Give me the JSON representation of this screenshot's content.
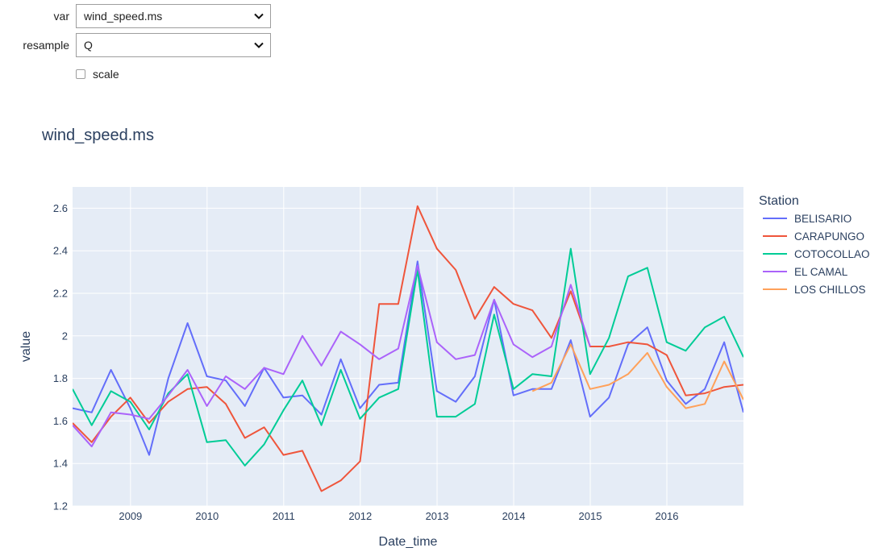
{
  "controls": {
    "var": {
      "label": "var",
      "value": "wind_speed.ms"
    },
    "resample": {
      "label": "resample",
      "value": "Q"
    },
    "scale": {
      "label": "scale",
      "checked": false
    }
  },
  "chart_data": {
    "type": "line",
    "title": "wind_speed.ms",
    "xlabel": "Date_time",
    "ylabel": "value",
    "xlim": [
      "2008-03-31",
      "2016-12-31"
    ],
    "ylim": [
      1.2,
      2.7
    ],
    "x_ticks": [
      "2009",
      "2010",
      "2011",
      "2012",
      "2013",
      "2014",
      "2015",
      "2016"
    ],
    "y_ticks": [
      "1.2",
      "1.4",
      "1.6",
      "1.8",
      "2",
      "2.2",
      "2.4",
      "2.6"
    ],
    "y_tick_values": [
      1.2,
      1.4,
      1.6,
      1.8,
      2.0,
      2.2,
      2.4,
      2.6
    ],
    "grid": true,
    "legend": {
      "title": "Station",
      "position": "right"
    },
    "x": [
      "2008-03-31",
      "2008-06-30",
      "2008-09-30",
      "2008-12-31",
      "2009-03-31",
      "2009-06-30",
      "2009-09-30",
      "2009-12-31",
      "2010-03-31",
      "2010-06-30",
      "2010-09-30",
      "2010-12-31",
      "2011-03-31",
      "2011-06-30",
      "2011-09-30",
      "2011-12-31",
      "2012-03-31",
      "2012-06-30",
      "2012-09-30",
      "2012-12-31",
      "2013-03-31",
      "2013-06-30",
      "2013-09-30",
      "2013-12-31",
      "2014-03-31",
      "2014-06-30",
      "2014-09-30",
      "2014-12-31",
      "2015-03-31",
      "2015-06-30",
      "2015-09-30",
      "2015-12-31",
      "2016-03-31",
      "2016-06-30",
      "2016-09-30",
      "2016-12-31"
    ],
    "series": [
      {
        "name": "BELISARIO",
        "color": "#636efa",
        "values": [
          1.66,
          1.64,
          1.84,
          1.66,
          1.44,
          1.8,
          2.06,
          1.81,
          1.79,
          1.67,
          1.85,
          1.71,
          1.72,
          1.63,
          1.89,
          1.66,
          1.77,
          1.78,
          2.35,
          1.74,
          1.69,
          1.81,
          2.17,
          1.72,
          1.75,
          1.75,
          1.98,
          1.62,
          1.71,
          1.96,
          2.04,
          1.79,
          1.68,
          1.75,
          1.97,
          1.64
        ]
      },
      {
        "name": "CARAPUNGO",
        "color": "#ef553b",
        "values": [
          1.59,
          1.5,
          1.62,
          1.71,
          1.59,
          1.69,
          1.75,
          1.76,
          1.68,
          1.52,
          1.57,
          1.44,
          1.46,
          1.27,
          1.32,
          1.41,
          2.15,
          2.15,
          2.61,
          2.41,
          2.31,
          2.08,
          2.23,
          2.15,
          2.12,
          1.99,
          2.21,
          1.95,
          1.95,
          1.97,
          1.96,
          1.91,
          1.72,
          1.73,
          1.76,
          1.77
        ]
      },
      {
        "name": "COTOCOLLAO",
        "color": "#00cc96",
        "values": [
          1.75,
          1.58,
          1.74,
          1.69,
          1.56,
          1.73,
          1.82,
          1.5,
          1.51,
          1.39,
          1.49,
          1.65,
          1.79,
          1.58,
          1.84,
          1.61,
          1.71,
          1.75,
          2.31,
          1.62,
          1.62,
          1.68,
          2.1,
          1.75,
          1.82,
          1.81,
          2.41,
          1.82,
          1.99,
          2.28,
          2.32,
          1.97,
          1.93,
          2.04,
          2.09,
          1.9
        ]
      },
      {
        "name": "EL CAMAL",
        "color": "#ab63fa",
        "values": [
          1.58,
          1.48,
          1.64,
          1.63,
          1.61,
          1.72,
          1.84,
          1.67,
          1.81,
          1.75,
          1.85,
          1.82,
          2.0,
          1.86,
          2.02,
          1.96,
          1.89,
          1.94,
          2.33,
          1.97,
          1.89,
          1.91,
          2.17,
          1.96,
          1.9,
          1.95,
          2.24,
          1.95,
          null,
          null,
          null,
          null,
          null,
          null,
          null,
          null
        ]
      },
      {
        "name": "LOS CHILLOS",
        "color": "#ffa15a",
        "values": [
          null,
          null,
          null,
          null,
          null,
          null,
          null,
          null,
          null,
          null,
          null,
          null,
          null,
          null,
          null,
          null,
          null,
          null,
          null,
          null,
          null,
          null,
          null,
          null,
          1.74,
          1.78,
          1.96,
          1.75,
          1.77,
          1.82,
          1.92,
          1.76,
          1.66,
          1.68,
          1.88,
          1.7
        ]
      }
    ]
  }
}
